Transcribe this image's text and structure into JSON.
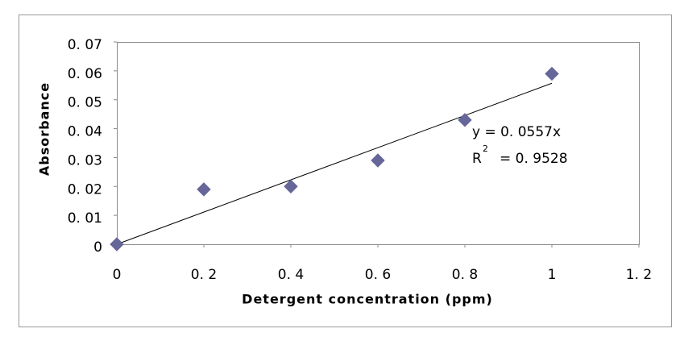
{
  "chart_data": {
    "type": "scatter",
    "x_label": "Detergent concentration (ppm)",
    "y_label": "Absorbance",
    "x": [
      0,
      0.2,
      0.4,
      0.6,
      0.8,
      1
    ],
    "values": [
      0,
      0.019,
      0.02,
      0.029,
      0.043,
      0.059
    ],
    "color": "#666699",
    "xlim": [
      0,
      1.2
    ],
    "xticks": [
      0,
      {
        "value": 0.2,
        "label": "0. 2"
      },
      {
        "value": 0.4,
        "label": "0. 4"
      },
      {
        "value": 0.6,
        "label": "0. 6"
      },
      {
        "value": 0.8,
        "label": "0. 8"
      },
      1,
      {
        "value": 1.2,
        "label": "1. 2"
      }
    ],
    "ylim": [
      0,
      0.07
    ],
    "yticks": [
      0,
      {
        "value": 0.01,
        "label": "0. 01"
      },
      {
        "value": 0.02,
        "label": "0. 02"
      },
      {
        "value": 0.03,
        "label": "0. 03"
      },
      {
        "value": 0.04,
        "label": "0. 04"
      },
      {
        "value": 0.05,
        "label": "0. 05"
      },
      {
        "value": 0.06,
        "label": "0. 06"
      },
      {
        "value": 0.07,
        "label": "0. 07"
      }
    ],
    "grid": false,
    "trendline": {
      "slope": 0.0557,
      "equation_label": "y  =  0. 0557x",
      "r2_symbol": "R",
      "r2_superscript": "2",
      "r2_value": 0.9528,
      "r2_value_label": "=  0. 9528"
    }
  }
}
